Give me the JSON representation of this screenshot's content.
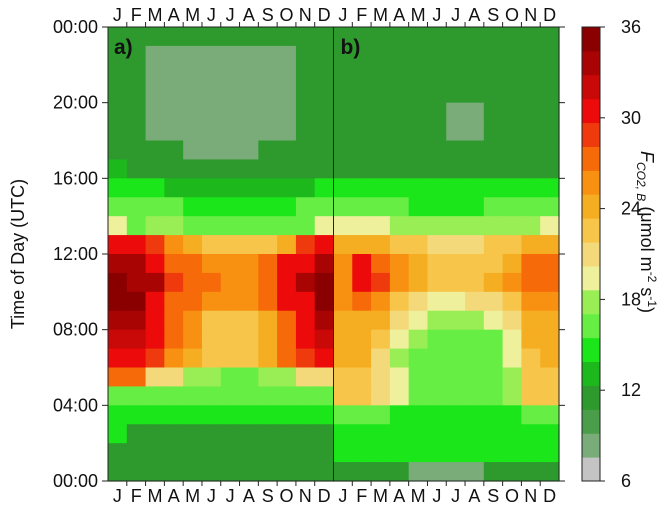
{
  "chart_data": {
    "type": "heatmap",
    "months": [
      "J",
      "F",
      "M",
      "A",
      "M",
      "J",
      "J",
      "A",
      "S",
      "O",
      "N",
      "D"
    ],
    "y_ticks": [
      "00:00",
      "04:00",
      "08:00",
      "12:00",
      "16:00",
      "20:00",
      "00:00"
    ],
    "ylabel": "Time of Day (UTC)",
    "colorbar": {
      "label_main": "F",
      "label_sub": "CO2, B",
      "label_units_open": " (μmol m",
      "label_exp1": "-2",
      "label_mid": " s",
      "label_exp2": "-1",
      "label_close": ")",
      "ticks": [
        "6",
        "12",
        "18",
        "24",
        "30",
        "36"
      ],
      "range": [
        6,
        36
      ],
      "colors": [
        "#c4c4c4",
        "#7aac7a",
        "#4a9e4a",
        "#2e9a2e",
        "#1cb81c",
        "#1ae61a",
        "#66ee44",
        "#99ee55",
        "#eef09c",
        "#f4d97a",
        "#f6c54a",
        "#f5ad22",
        "#f89112",
        "#f66a0a",
        "#ee3a0c",
        "#ec0a0a",
        "#c90808",
        "#a90404",
        "#8a0000"
      ]
    },
    "panels": [
      {
        "label": "a)",
        "values": [
          [
            11,
            11,
            11,
            11,
            11,
            11,
            11,
            11,
            11,
            11,
            11,
            11
          ],
          [
            11,
            11,
            8,
            8,
            8,
            8,
            8,
            8,
            8,
            8,
            11,
            11
          ],
          [
            11,
            11,
            8,
            8,
            8,
            8,
            8,
            8,
            8,
            8,
            11,
            11
          ],
          [
            11,
            11,
            8,
            8,
            8,
            8,
            8,
            8,
            8,
            8,
            11,
            11
          ],
          [
            11,
            11,
            8,
            8,
            8,
            8,
            8,
            8,
            8,
            8,
            11,
            11
          ],
          [
            11,
            11,
            8,
            8,
            8,
            8,
            8,
            8,
            8,
            8,
            11,
            11
          ],
          [
            11,
            11,
            11,
            11,
            8,
            8,
            8,
            8,
            11,
            11,
            11,
            11
          ],
          [
            13,
            11,
            11,
            11,
            11,
            11,
            11,
            11,
            11,
            11,
            11,
            11
          ],
          [
            15,
            15,
            14,
            13,
            13,
            13,
            13,
            13,
            13,
            13,
            13,
            15
          ],
          [
            17,
            16,
            16,
            16,
            15,
            15,
            15,
            15,
            15,
            15,
            16,
            16
          ],
          [
            20,
            16,
            18,
            18,
            16,
            16,
            16,
            17,
            16,
            17,
            16,
            20
          ],
          [
            31,
            31,
            29,
            25,
            24,
            22,
            22,
            22,
            22,
            24,
            29,
            31
          ],
          [
            33,
            33,
            31,
            28,
            27,
            25,
            25,
            25,
            27,
            30,
            31,
            33
          ],
          [
            35,
            34,
            33,
            29,
            28,
            27,
            26,
            26,
            28,
            31,
            33,
            35
          ],
          [
            35,
            35,
            31,
            28,
            27,
            25,
            25,
            25,
            27,
            30,
            31,
            35
          ],
          [
            33,
            33,
            30,
            27,
            25,
            23,
            23,
            23,
            24,
            28,
            31,
            33
          ],
          [
            32,
            32,
            30,
            27,
            25,
            23,
            23,
            23,
            24,
            28,
            30,
            32
          ],
          [
            31,
            31,
            29,
            26,
            24,
            23,
            23,
            23,
            24,
            28,
            29,
            31
          ],
          [
            27,
            27,
            21,
            21,
            18,
            18,
            16,
            16,
            18,
            18,
            21,
            21
          ],
          [
            16,
            16,
            16,
            16,
            16,
            16,
            16,
            16,
            16,
            16,
            16,
            16
          ],
          [
            14,
            14,
            14,
            14,
            14,
            14,
            14,
            14,
            14,
            14,
            14,
            14
          ],
          [
            14,
            12,
            12,
            12,
            11,
            11,
            11,
            11,
            11,
            12,
            12,
            12
          ],
          [
            12,
            12,
            12,
            11,
            11,
            11,
            11,
            11,
            11,
            11,
            12,
            12
          ],
          [
            11,
            11,
            11,
            11,
            11,
            11,
            11,
            11,
            11,
            11,
            11,
            11
          ]
        ]
      },
      {
        "label": "b)",
        "values": [
          [
            12,
            12,
            12,
            12,
            12,
            12,
            12,
            12,
            12,
            12,
            12,
            12
          ],
          [
            11,
            11,
            11,
            11,
            11,
            11,
            11,
            11,
            11,
            12,
            12,
            12
          ],
          [
            11,
            11,
            11,
            11,
            11,
            11,
            11,
            11,
            11,
            12,
            12,
            12
          ],
          [
            11,
            11,
            11,
            11,
            11,
            11,
            11,
            11,
            11,
            12,
            12,
            12
          ],
          [
            11,
            11,
            11,
            11,
            11,
            11,
            8,
            8,
            11,
            11,
            12,
            12
          ],
          [
            11,
            11,
            11,
            11,
            11,
            11,
            8,
            8,
            11,
            11,
            11,
            11
          ],
          [
            11,
            11,
            11,
            11,
            11,
            11,
            11,
            11,
            11,
            11,
            11,
            12
          ],
          [
            12,
            12,
            12,
            12,
            12,
            12,
            12,
            12,
            12,
            12,
            12,
            12
          ],
          [
            14,
            14,
            14,
            14,
            14,
            14,
            14,
            14,
            14,
            14,
            14,
            14
          ],
          [
            16,
            16,
            16,
            16,
            15,
            15,
            15,
            15,
            16,
            16,
            16,
            16
          ],
          [
            20,
            20,
            20,
            18,
            18,
            18,
            18,
            18,
            18,
            18,
            18,
            20
          ],
          [
            24,
            24,
            24,
            22,
            22,
            21,
            21,
            21,
            22,
            22,
            24,
            24
          ],
          [
            26,
            30,
            28,
            25,
            24,
            23,
            22,
            22,
            22,
            24,
            27,
            27
          ],
          [
            26,
            30,
            29,
            25,
            24,
            23,
            22,
            22,
            24,
            26,
            27,
            27
          ],
          [
            26,
            28,
            26,
            23,
            21,
            20,
            20,
            21,
            21,
            23,
            26,
            26
          ],
          [
            24,
            24,
            24,
            21,
            19,
            18,
            18,
            18,
            19,
            21,
            24,
            24
          ],
          [
            24,
            24,
            22,
            20,
            18,
            17,
            17,
            17,
            17,
            19,
            24,
            24
          ],
          [
            24,
            24,
            21,
            18,
            17,
            16,
            16,
            16,
            17,
            19,
            23,
            24
          ],
          [
            22,
            22,
            21,
            19,
            17,
            16,
            16,
            16,
            17,
            18,
            22,
            22
          ],
          [
            22,
            22,
            21,
            19,
            17,
            16,
            16,
            16,
            17,
            18,
            22,
            22
          ],
          [
            17,
            17,
            16,
            15,
            15,
            15,
            15,
            15,
            15,
            15,
            17,
            17
          ],
          [
            15,
            15,
            15,
            14,
            14,
            14,
            14,
            14,
            14,
            14,
            14,
            15
          ],
          [
            14,
            14,
            14,
            14,
            14,
            14,
            14,
            14,
            14,
            14,
            14,
            14
          ],
          [
            12,
            12,
            12,
            12,
            8,
            8,
            8,
            8,
            12,
            12,
            12,
            12
          ]
        ]
      }
    ]
  }
}
